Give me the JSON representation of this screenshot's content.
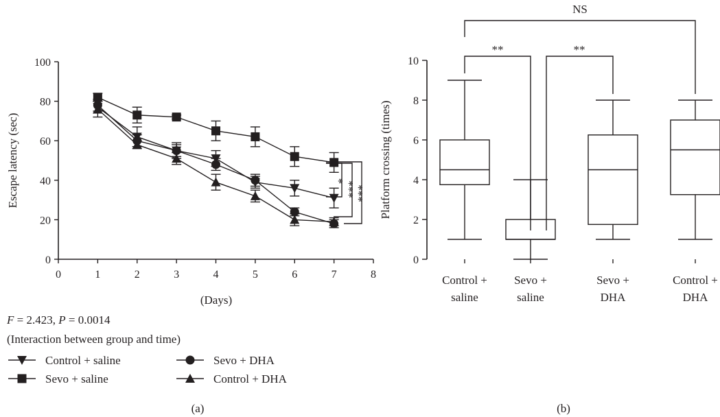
{
  "panel_a": {
    "panel_label": "(a)",
    "stat_f": "F",
    "stat_eq1": " = 2.423, ",
    "stat_p": "P",
    "stat_eq2": " = 0.0014",
    "stat_note": "(Interaction between group and time)",
    "significance": [
      "*",
      "***",
      "***"
    ]
  },
  "panel_b": {
    "panel_label": "(b)",
    "brackets": [
      {
        "from": "Control + saline",
        "to": "Sevo + saline",
        "label": "**"
      },
      {
        "from": "Sevo + saline",
        "to": "Sevo + DHA",
        "label": "**"
      },
      {
        "from": "Control + saline",
        "to": "Control + DHA",
        "label": "NS"
      }
    ]
  },
  "chart_data": [
    {
      "type": "line",
      "xlabel": "(Days)",
      "ylabel": "Escape latency (sec)",
      "xlim": [
        0,
        8
      ],
      "ylim": [
        0,
        100
      ],
      "xticks": [
        "0",
        "1",
        "2",
        "3",
        "4",
        "5",
        "6",
        "7",
        "8"
      ],
      "yticks": [
        "0",
        "20",
        "40",
        "60",
        "80",
        "100"
      ],
      "x": [
        1,
        2,
        3,
        4,
        5,
        6,
        7
      ],
      "grid": false,
      "legend_position": "bottom",
      "series": [
        {
          "name": "Control + saline",
          "marker": "triangle-down",
          "values": [
            77,
            62,
            55,
            51,
            39,
            36,
            31
          ],
          "errors": [
            3,
            5,
            4,
            4,
            3,
            4,
            5
          ]
        },
        {
          "name": "Sevo + saline",
          "marker": "square",
          "values": [
            82,
            73,
            72,
            65,
            62,
            52,
            49
          ],
          "errors": [
            2,
            4,
            1,
            5,
            5,
            5,
            5
          ]
        },
        {
          "name": "Sevo + DHA",
          "marker": "circle",
          "values": [
            78,
            60,
            55,
            48,
            40,
            24,
            18
          ],
          "errors": [
            3,
            3,
            3,
            3,
            3,
            2,
            2
          ]
        },
        {
          "name": "Control + DHA",
          "marker": "triangle-up",
          "values": [
            76,
            58,
            51,
            39,
            32,
            20,
            19
          ],
          "errors": [
            4,
            2,
            3,
            4,
            3,
            3,
            2
          ]
        }
      ]
    },
    {
      "type": "box",
      "ylabel": "Platform crossing (times)",
      "ylim": [
        0,
        10
      ],
      "yticks": [
        "0",
        "2",
        "4",
        "6",
        "8",
        "10"
      ],
      "categories": [
        "Control + saline",
        "Sevo + saline",
        "Sevo + DHA",
        "Control + DHA"
      ],
      "category_lines": [
        [
          "Control +",
          "saline"
        ],
        [
          "Sevo +",
          "saline"
        ],
        [
          "Sevo +",
          "DHA"
        ],
        [
          "Control +",
          "DHA"
        ]
      ],
      "boxes": [
        {
          "min": 1,
          "q1": 3.75,
          "median": 4.5,
          "q3": 6,
          "max": 9
        },
        {
          "min": 0,
          "q1": 1,
          "median": 1,
          "q3": 2,
          "max": 4
        },
        {
          "min": 1,
          "q1": 1.75,
          "median": 4.5,
          "q3": 6.25,
          "max": 8
        },
        {
          "min": 1,
          "q1": 3.25,
          "median": 5.5,
          "q3": 7,
          "max": 8
        }
      ]
    }
  ]
}
